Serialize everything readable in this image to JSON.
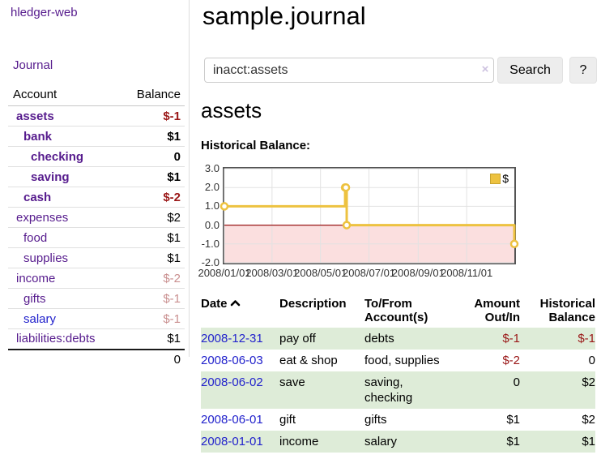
{
  "app": {
    "title": "hledger-web"
  },
  "nav": {
    "journal": "Journal"
  },
  "sidebar": {
    "header": {
      "account": "Account",
      "balance": "Balance"
    },
    "accounts": [
      {
        "name": "assets",
        "balance": "$-1"
      },
      {
        "name": "bank",
        "balance": "$1"
      },
      {
        "name": "checking",
        "balance": "0"
      },
      {
        "name": "saving",
        "balance": "$1"
      },
      {
        "name": "cash",
        "balance": "$-2"
      },
      {
        "name": "expenses",
        "balance": "$2"
      },
      {
        "name": "food",
        "balance": "$1"
      },
      {
        "name": "supplies",
        "balance": "$1"
      },
      {
        "name": "income",
        "balance": "$-2"
      },
      {
        "name": "gifts",
        "balance": "$-1"
      },
      {
        "name": "salary",
        "balance": "$-1"
      },
      {
        "name": "liabilities:debts",
        "balance": "$1"
      }
    ],
    "total": "0"
  },
  "header": {
    "title": "sample.journal"
  },
  "search": {
    "value": "inacct:assets",
    "clear_icon": "×",
    "button": "Search",
    "help_button": "?"
  },
  "account_page": {
    "title": "assets",
    "chart_label": "Historical Balance:"
  },
  "chart_data": {
    "type": "line",
    "title": "Historical Balance:",
    "step": true,
    "xrange": [
      "2008-01-01",
      "2008-12-31"
    ],
    "ylim": [
      -2,
      3
    ],
    "yticks": [
      "3.0",
      "2.0",
      "1.0",
      "0.0",
      "-1.0",
      "-2.0"
    ],
    "xticks": [
      "2008/01/01",
      "2008/03/01",
      "2008/05/01",
      "2008/07/01",
      "2008/09/01",
      "2008/11/01"
    ],
    "series": [
      {
        "name": "$",
        "color": "#EDC240",
        "points": [
          [
            "2008-01-01",
            1
          ],
          [
            "2008-06-01",
            2
          ],
          [
            "2008-06-02",
            2
          ],
          [
            "2008-06-03",
            0
          ],
          [
            "2008-12-31",
            -1
          ]
        ]
      }
    ],
    "grid": true,
    "negative_region_color": "#FBDFDF",
    "zero_line_color": "#9A1717",
    "legend": {
      "label": "$",
      "position": "top-right"
    }
  },
  "register": {
    "columns": {
      "date": "Date",
      "description": "Description",
      "accounts": "To/From Account(s)",
      "amount": "Amount Out/In",
      "balance": "Historical Balance"
    },
    "rows": [
      {
        "date": "2008-12-31",
        "description": "pay off",
        "accounts": "debts",
        "amount": "$-1",
        "balance": "$-1"
      },
      {
        "date": "2008-06-03",
        "description": "eat & shop",
        "accounts": "food, supplies",
        "amount": "$-2",
        "balance": "0"
      },
      {
        "date": "2008-06-02",
        "description": "save",
        "accounts": "saving, checking",
        "amount": "0",
        "balance": "$2"
      },
      {
        "date": "2008-06-01",
        "description": "gift",
        "accounts": "gifts",
        "amount": "$1",
        "balance": "$2"
      },
      {
        "date": "2008-01-01",
        "description": "income",
        "accounts": "salary",
        "amount": "$1",
        "balance": "$1"
      }
    ]
  }
}
